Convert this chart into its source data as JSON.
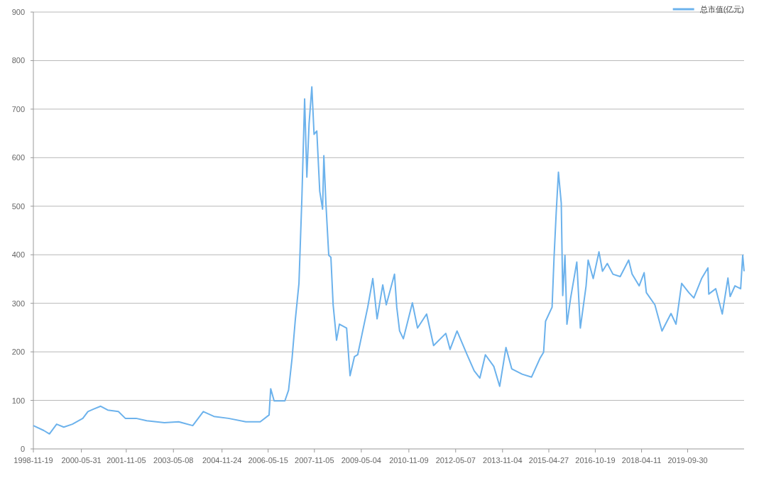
{
  "chart_data": {
    "type": "line",
    "legend": "top right",
    "grid": "y",
    "marker": "none",
    "line_style": "solid",
    "ylim": [
      0,
      900
    ],
    "yticks": [
      0,
      100,
      200,
      300,
      400,
      500,
      600,
      700,
      800,
      900
    ],
    "xlim": [
      "1998-11-19",
      "2021-07-18"
    ],
    "xticks": [
      "1998-11-19",
      "2000-05-31",
      "2001-11-05",
      "2003-05-08",
      "2004-11-24",
      "2006-05-15",
      "2007-11-05",
      "2009-05-04",
      "2010-11-09",
      "2012-05-07",
      "2013-11-04",
      "2015-04-27",
      "2016-10-19",
      "2018-04-11",
      "2019-09-30"
    ],
    "x": [
      "1998-11-19",
      "1999-03-20",
      "1999-05-25",
      "1999-08-17",
      "1999-11-08",
      "2000-02-16",
      "2000-06-17",
      "2000-08-15",
      "2000-10-19",
      "2001-01-11",
      "2001-04-03",
      "2001-08-05",
      "2001-10-25",
      "2002-02-27",
      "2002-07-01",
      "2003-01-23",
      "2003-07-07",
      "2003-12-19",
      "2004-04-20",
      "2004-08-22",
      "2005-02-06",
      "2005-08-28",
      "2006-02-12",
      "2006-05-26",
      "2006-06-14",
      "2006-07-24",
      "2006-11-26",
      "2007-01-08",
      "2007-02-18",
      "2007-03-27",
      "2007-05-09",
      "2007-06-12",
      "2007-07-14",
      "2007-08-09",
      "2007-09-04",
      "2007-10-06",
      "2007-11-01",
      "2007-12-03",
      "2008-01-06",
      "2008-02-08",
      "2008-02-23",
      "2008-03-18",
      "2008-04-20",
      "2008-05-15",
      "2008-06-10",
      "2008-07-20",
      "2008-08-22",
      "2008-11-14",
      "2008-12-24",
      "2009-02-13",
      "2009-03-23",
      "2009-07-18",
      "2009-09-15",
      "2009-11-04",
      "2010-01-09",
      "2010-02-19",
      "2010-05-26",
      "2010-06-21",
      "2010-07-24",
      "2010-09-06",
      "2010-12-20",
      "2011-02-18",
      "2011-06-04",
      "2011-08-24",
      "2012-01-13",
      "2012-03-03",
      "2012-05-23",
      "2012-09-17",
      "2012-12-09",
      "2013-02-13",
      "2013-04-18",
      "2013-07-25",
      "2013-10-02",
      "2013-12-14",
      "2014-02-19",
      "2014-06-21",
      "2014-10-08",
      "2015-01-15",
      "2015-02-25",
      "2015-03-20",
      "2015-06-04",
      "2015-06-27",
      "2015-07-22",
      "2015-08-17",
      "2015-09-19",
      "2015-10-06",
      "2015-11-01",
      "2015-11-24",
      "2016-01-06",
      "2016-03-18",
      "2016-04-28",
      "2016-07-04",
      "2016-07-28",
      "2016-09-25",
      "2016-12-01",
      "2017-01-11",
      "2017-03-08",
      "2017-05-13",
      "2017-08-05",
      "2017-11-12",
      "2017-12-22",
      "2018-03-14",
      "2018-05-11",
      "2018-06-06",
      "2018-09-13",
      "2018-12-05",
      "2019-03-20",
      "2019-05-17",
      "2019-07-22",
      "2019-10-14",
      "2019-12-11",
      "2020-03-10",
      "2020-05-23",
      "2020-06-02",
      "2020-08-22",
      "2020-11-06",
      "2021-01-11",
      "2021-02-06",
      "2021-04-03",
      "2021-06-08",
      "2021-07-02",
      "2021-07-18"
    ],
    "series": [
      {
        "name": "总市值(亿元)",
        "color": "#6cb2ec",
        "values": [
          48,
          38,
          31,
          51,
          45,
          51,
          63,
          77,
          82,
          88,
          80,
          77,
          63,
          63,
          58,
          54,
          56,
          48,
          77,
          67,
          63,
          56,
          56,
          70,
          124,
          99,
          99,
          121,
          187,
          265,
          341,
          516,
          721,
          560,
          670,
          746,
          648,
          655,
          531,
          494,
          604,
          506,
          399,
          395,
          297,
          224,
          257,
          249,
          151,
          190,
          194,
          292,
          351,
          268,
          338,
          297,
          360,
          292,
          243,
          227,
          301,
          249,
          278,
          213,
          238,
          205,
          243,
          194,
          161,
          146,
          194,
          170,
          129,
          209,
          165,
          154,
          148,
          187,
          199,
          263,
          292,
          395,
          487,
          570,
          506,
          316,
          399,
          257,
          311,
          385,
          249,
          336,
          389,
          351,
          406,
          366,
          382,
          360,
          355,
          389,
          360,
          336,
          363,
          322,
          297,
          243,
          279,
          257,
          341,
          322,
          311,
          351,
          373,
          319,
          330,
          278,
          352,
          314,
          336,
          330,
          399,
          366
        ]
      }
    ]
  }
}
